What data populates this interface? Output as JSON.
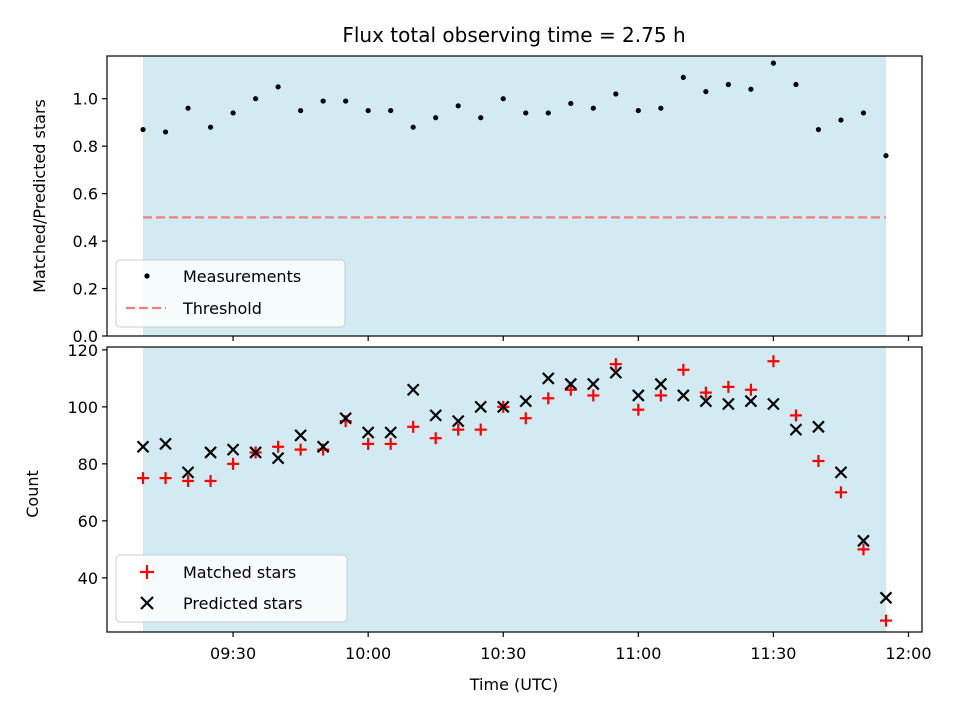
{
  "chart_data": [
    {
      "type": "scatter",
      "title": "Flux total observing time = 2.75 h",
      "xlabel": "",
      "ylabel": "Matched/Predicted stars",
      "ylim": [
        0,
        1.18
      ],
      "yticks": [
        "0.0",
        "0.2",
        "0.4",
        "0.6",
        "0.8",
        "1.0"
      ],
      "shaded_span": [
        "09:10",
        "11:55"
      ],
      "shade_color": "#add8e6",
      "legend_position": "lower-left",
      "x": [
        "09:10",
        "09:15",
        "09:20",
        "09:25",
        "09:30",
        "09:35",
        "09:40",
        "09:45",
        "09:50",
        "09:55",
        "10:00",
        "10:05",
        "10:10",
        "10:15",
        "10:20",
        "10:25",
        "10:30",
        "10:35",
        "10:40",
        "10:45",
        "10:50",
        "10:55",
        "11:00",
        "11:05",
        "11:10",
        "11:15",
        "11:20",
        "11:25",
        "11:30",
        "11:35",
        "11:40",
        "11:45",
        "11:50",
        "11:55"
      ],
      "series": [
        {
          "name": "Measurements",
          "marker": "dot",
          "color": "#000000",
          "values": [
            0.87,
            0.86,
            0.96,
            0.88,
            0.94,
            1.0,
            1.05,
            0.95,
            0.99,
            0.99,
            0.95,
            0.95,
            0.88,
            0.92,
            0.97,
            0.92,
            1.0,
            0.94,
            0.94,
            0.98,
            0.96,
            1.02,
            0.95,
            0.96,
            1.09,
            1.03,
            1.06,
            1.04,
            1.15,
            1.06,
            0.87,
            0.91,
            0.94,
            0.76
          ]
        },
        {
          "name": "Threshold",
          "marker": "dashed-line",
          "color": "#f08080",
          "constant": 0.5
        }
      ]
    },
    {
      "type": "scatter",
      "title": "",
      "xlabel": "Time (UTC)",
      "ylabel": "Count",
      "ylim": [
        21,
        121
      ],
      "yticks": [
        "40",
        "60",
        "80",
        "100",
        "120"
      ],
      "xlim": [
        "09:02",
        "12:03"
      ],
      "xticks": [
        "09:30",
        "10:00",
        "10:30",
        "11:00",
        "11:30",
        "12:00"
      ],
      "shaded_span": [
        "09:10",
        "11:55"
      ],
      "shade_color": "#add8e6",
      "legend_position": "lower-left",
      "x": [
        "09:10",
        "09:15",
        "09:20",
        "09:25",
        "09:30",
        "09:35",
        "09:40",
        "09:45",
        "09:50",
        "09:55",
        "10:00",
        "10:05",
        "10:10",
        "10:15",
        "10:20",
        "10:25",
        "10:30",
        "10:35",
        "10:40",
        "10:45",
        "10:50",
        "10:55",
        "11:00",
        "11:05",
        "11:10",
        "11:15",
        "11:20",
        "11:25",
        "11:30",
        "11:35",
        "11:40",
        "11:45",
        "11:50",
        "11:55"
      ],
      "series": [
        {
          "name": "Matched stars",
          "marker": "plus",
          "color": "#ff0000",
          "values": [
            75,
            75,
            74,
            74,
            80,
            84,
            86,
            85,
            85,
            95,
            87,
            87,
            93,
            89,
            92,
            92,
            100,
            96,
            103,
            106,
            104,
            115,
            99,
            104,
            113,
            105,
            107,
            106,
            116,
            97,
            81,
            70,
            50,
            25
          ]
        },
        {
          "name": "Predicted stars",
          "marker": "cross",
          "color": "#000000",
          "values": [
            86,
            87,
            77,
            84,
            85,
            84,
            82,
            90,
            86,
            96,
            91,
            91,
            106,
            97,
            95,
            100,
            100,
            102,
            110,
            108,
            108,
            112,
            104,
            108,
            104,
            102,
            101,
            102,
            101,
            92,
            93,
            77,
            53,
            33
          ]
        }
      ]
    }
  ]
}
